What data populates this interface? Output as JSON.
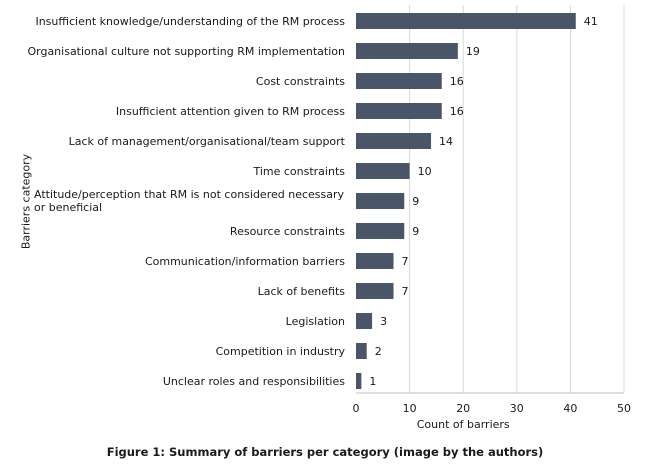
{
  "chart_data": {
    "type": "bar",
    "orientation": "horizontal",
    "categories": [
      "Insufficient knowledge/understanding of the RM process",
      "Organisational culture not supporting RM implementation",
      "Cost constraints",
      "Insufficient attention given to RM process",
      "Lack of management/organisational/team support",
      "Time constraints",
      "Attitude/perception that RM is not considered necessary or beneficial",
      "Resource constraints",
      "Communication/information barriers",
      "Lack of benefits",
      "Legislation",
      "Competition in industry",
      "Unclear roles and responsibilities"
    ],
    "values": [
      41,
      19,
      16,
      16,
      14,
      10,
      9,
      9,
      7,
      7,
      3,
      2,
      1
    ],
    "xlabel": "Count of barriers",
    "ylabel": "Barriers category",
    "xlim": [
      0,
      50
    ],
    "xticks": [
      0,
      10,
      20,
      30,
      40,
      50
    ],
    "grid": "vertical",
    "bar_color": "#4a5568",
    "caption": "Figure 1: Summary of barriers per category (image by the authors)"
  }
}
